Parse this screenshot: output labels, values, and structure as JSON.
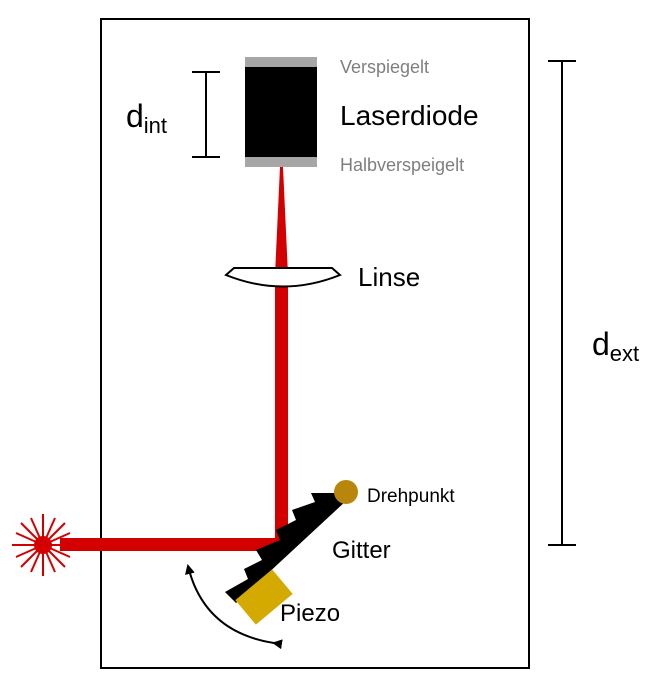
{
  "labels": {
    "mirror_top": "Verspiegelt",
    "laser_diode": "Laserdiode",
    "mirror_bottom": "Halbverspeigelt",
    "lens": "Linse",
    "pivot": "Drehpunkt",
    "grating": "Gitter",
    "piezo": "Piezo",
    "d_int_main": "d",
    "d_int_sub": "int",
    "d_ext_main": "d",
    "d_ext_sub": "ext"
  },
  "colors": {
    "beam": "#d40000",
    "diode": "#000000",
    "mirror": "#a6a6a6",
    "mirror_text": "#7f7f7f",
    "pivot": "#b8860b",
    "piezo": "#d4a900",
    "frame": "#000000"
  }
}
